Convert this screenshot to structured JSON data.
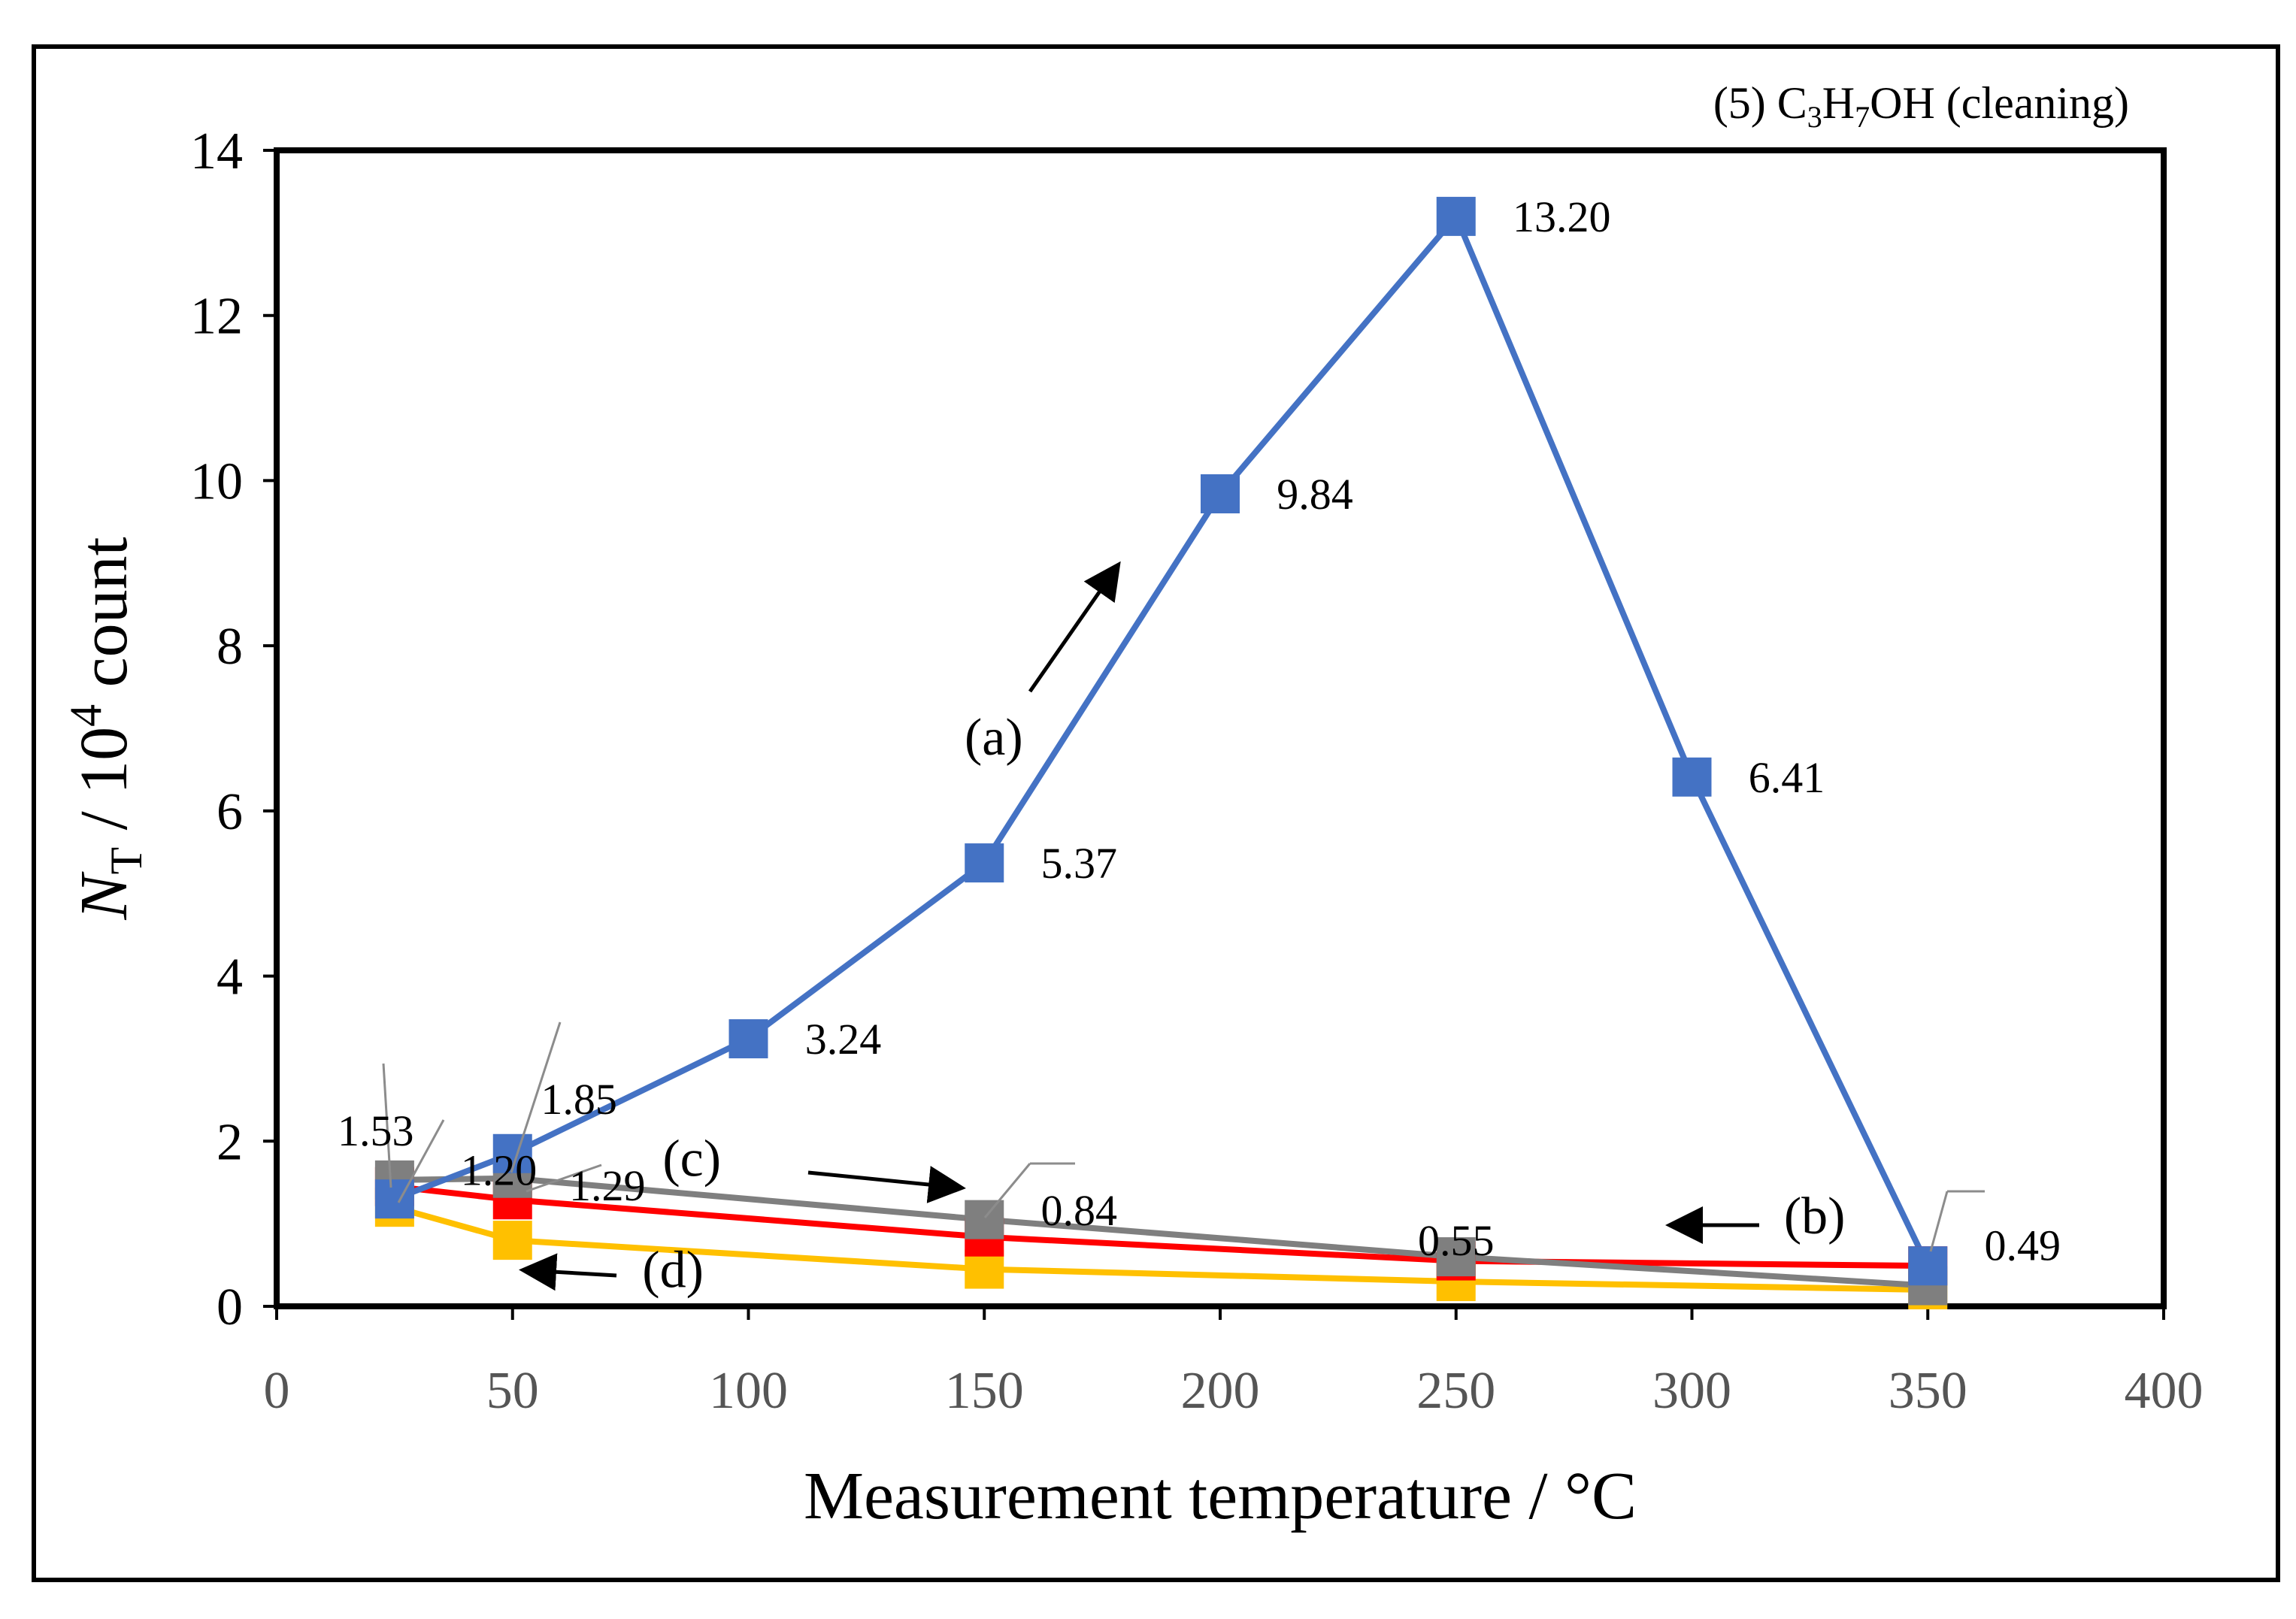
{
  "chart_data": {
    "type": "line",
    "title": "(5) C₃H₇OH (cleaning)",
    "title_parts": {
      "prefix": "(5) C",
      "sub1": "3",
      "mid": "H",
      "sub2": "7",
      "suffix": "OH (cleaning)"
    },
    "xlabel": "Measurement temperature / °C",
    "ylabel": "N_T / 10^4 count",
    "ylabel_parts": {
      "symbol": "N",
      "sub": "T",
      "middle": " / 10",
      "sup": "4",
      "suffix": " count"
    },
    "xlim": [
      0,
      400
    ],
    "ylim": [
      0,
      14
    ],
    "x_ticks": [
      0,
      50,
      100,
      150,
      200,
      250,
      300,
      350,
      400
    ],
    "y_ticks": [
      0,
      2,
      4,
      6,
      8,
      10,
      12,
      14
    ],
    "grid": false,
    "series": [
      {
        "name": "(a)",
        "color": "#4472C4",
        "marker": "square",
        "x": [
          25,
          50,
          100,
          150,
          200,
          250,
          300,
          350
        ],
        "y": [
          1.3,
          1.85,
          3.24,
          5.37,
          9.84,
          13.2,
          6.41,
          0.49
        ]
      },
      {
        "name": "(b)",
        "color": "#FF0000",
        "marker": "square",
        "x": [
          25,
          50,
          150,
          250,
          350
        ],
        "y": [
          1.45,
          1.29,
          0.84,
          0.55,
          0.49
        ]
      },
      {
        "name": "(c)",
        "color": "#7F7F7F",
        "marker": "square",
        "x": [
          25,
          50,
          150,
          250,
          350
        ],
        "y": [
          1.53,
          1.55,
          1.05,
          0.6,
          0.25
        ]
      },
      {
        "name": "(d)",
        "color": "#FFC000",
        "marker": "square",
        "x": [
          25,
          50,
          150,
          250,
          350
        ],
        "y": [
          1.2,
          0.8,
          0.45,
          0.3,
          0.2
        ]
      }
    ],
    "data_labels": [
      {
        "text": "13.20",
        "x": 250,
        "y": 13.2,
        "dx": 3,
        "dy": 0
      },
      {
        "text": "9.84",
        "x": 200,
        "y": 9.84,
        "dx": 3,
        "dy": 0
      },
      {
        "text": "6.41",
        "x": 300,
        "y": 6.41,
        "dx": 3,
        "dy": 0
      },
      {
        "text": "5.37",
        "x": 150,
        "y": 5.37,
        "dx": 3,
        "dy": 0
      },
      {
        "text": "3.24",
        "x": 100,
        "y": 3.24,
        "dx": 3,
        "dy": 0
      },
      {
        "text": "1.85",
        "x": 50,
        "y": 1.85,
        "dx": 1.5,
        "dy": 2.65
      },
      {
        "text": "1.53",
        "x": 25,
        "y": 1.53,
        "dx": -1,
        "dy": 2.4
      },
      {
        "text": "1.20",
        "x": 25,
        "y": 1.2,
        "dx": 3.5,
        "dy": 1.8
      },
      {
        "text": "1.29",
        "x": 50,
        "y": 1.29,
        "dx": 3,
        "dy": 0.7
      },
      {
        "text": "0.84",
        "x": 150,
        "y": 0.84,
        "dx": 3,
        "dy": 1.3
      },
      {
        "text": "0.55",
        "x": 250,
        "y": 0.55,
        "dx": 0,
        "dy": 1.0
      },
      {
        "text": "0.49",
        "x": 350,
        "y": 0.49,
        "dx": 3,
        "dy": 1.0
      }
    ],
    "annotations": [
      {
        "text": "(a)",
        "x": 152,
        "y": 6.9
      },
      {
        "text": "(b)",
        "x": 326,
        "y": 1.1
      },
      {
        "text": "(c)",
        "x": 88,
        "y": 1.8
      },
      {
        "text": "(d)",
        "x": 84,
        "y": 0.45
      }
    ]
  }
}
